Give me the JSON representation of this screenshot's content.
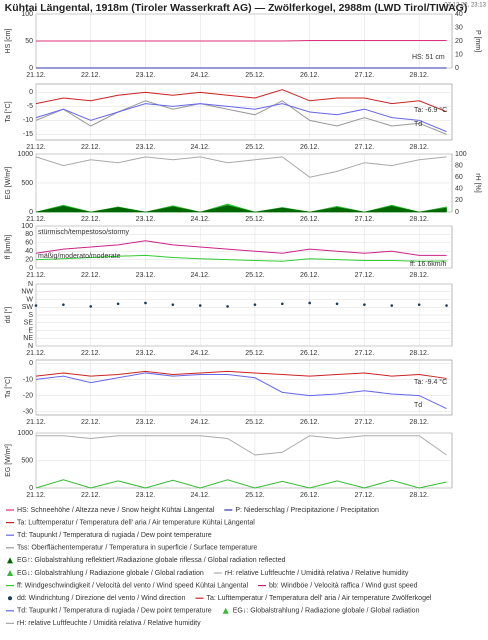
{
  "header": {
    "title": "Kühtai Längental, 1918m (Tiroler Wasserkraft AG) — Zwölferkogel, 2988m (LWD Tirol/TIWAG)",
    "timestamp": "07.12.22, 23:13"
  },
  "time_axis": {
    "x": [
      0,
      0.5,
      1,
      1.5,
      2,
      2.5,
      3,
      3.5,
      4,
      4.5,
      5,
      5.5,
      6,
      6.5,
      7,
      7.5
    ],
    "xlim": [
      0,
      7.6
    ],
    "xticks": [
      {
        "value": 0,
        "label": "21.12."
      },
      {
        "value": 1,
        "label": "22.12."
      },
      {
        "value": 2,
        "label": "23.12."
      },
      {
        "value": 3,
        "label": "24.12."
      },
      {
        "value": 4,
        "label": "25.12."
      },
      {
        "value": 5,
        "label": "26.12."
      },
      {
        "value": 6,
        "label": "27.12."
      },
      {
        "value": 7,
        "label": "28.12."
      }
    ]
  },
  "chart_data": [
    {
      "type": "line",
      "ylabel": "HS [cm]",
      "y2label": "P [mm]",
      "ylim": [
        0,
        100
      ],
      "yticks": [
        0,
        50,
        100
      ],
      "y2lim": [
        0,
        40
      ],
      "y2ticks": [
        0,
        10,
        20,
        30,
        40
      ],
      "grid": true,
      "series": [
        {
          "name": "HS",
          "type": "line",
          "color": "#e0307a",
          "values": [
            50,
            50,
            50,
            50,
            50,
            50,
            50,
            50,
            50,
            50,
            51,
            51,
            51,
            51,
            51,
            51
          ]
        },
        {
          "name": "P",
          "type": "line",
          "axis": "y2",
          "color": "#3333aa",
          "values": [
            0,
            0,
            0,
            0,
            0,
            0,
            0,
            0,
            0,
            0,
            0,
            0,
            0,
            0,
            0,
            0
          ]
        }
      ],
      "annotations": [
        {
          "text": "HS: 51 cm",
          "color": "#e0307a"
        }
      ]
    },
    {
      "type": "line",
      "ylabel": "Ta [°C]",
      "ylim": [
        -17,
        3
      ],
      "yticks": [
        -15,
        -10,
        -5,
        0
      ],
      "grid": true,
      "series": [
        {
          "name": "Tss",
          "type": "line",
          "color": "#999999",
          "values": [
            -10,
            -6,
            -12,
            -7,
            -3,
            -6,
            -4,
            -6,
            -8,
            -3,
            -10,
            -12,
            -9,
            -12,
            -11,
            -15
          ]
        },
        {
          "name": "Td",
          "type": "line",
          "color": "#6666ee",
          "values": [
            -9,
            -6,
            -10,
            -7,
            -4,
            -5,
            -4,
            -5,
            -6,
            -4,
            -7,
            -8,
            -6,
            -9,
            -10,
            -14
          ]
        },
        {
          "name": "Ta",
          "type": "line",
          "color": "#cc2222",
          "values": [
            -4,
            -2,
            -3,
            -1,
            0,
            -1,
            0,
            -1,
            -2,
            1,
            -3,
            -2,
            -2,
            -4,
            -3,
            -6.9
          ]
        }
      ],
      "annotations": [
        {
          "text": "Ta: -6.9 °C",
          "color": "#cc2222"
        },
        {
          "text": "Td",
          "color": "#6666ee"
        }
      ]
    },
    {
      "type": "line",
      "ylabel": "EG [W/m²]",
      "y2label": "rH [%]",
      "ylim": [
        0,
        1000
      ],
      "yticks": [
        0,
        500,
        1000
      ],
      "y2lim": [
        0,
        100
      ],
      "y2ticks": [
        0,
        20,
        40,
        60,
        80,
        100
      ],
      "grid": true,
      "series": [
        {
          "name": "rH",
          "type": "line",
          "axis": "y2",
          "color": "#aaaaaa",
          "values": [
            95,
            80,
            90,
            85,
            95,
            90,
            95,
            85,
            90,
            95,
            60,
            70,
            85,
            80,
            90,
            95
          ]
        },
        {
          "name": "EG↓",
          "type": "area",
          "color": "#33bb33",
          "values": [
            0,
            120,
            0,
            90,
            0,
            110,
            0,
            140,
            0,
            80,
            0,
            100,
            0,
            120,
            0,
            90
          ]
        },
        {
          "name": "EG↑",
          "type": "area",
          "color": "#006600",
          "values": [
            0,
            100,
            0,
            80,
            0,
            90,
            0,
            110,
            0,
            70,
            0,
            80,
            0,
            100,
            0,
            70
          ]
        }
      ],
      "annotations": []
    },
    {
      "type": "line",
      "ylabel": "ff [km/h]",
      "ylim": [
        0,
        100
      ],
      "yticks": [
        0,
        20,
        40,
        60,
        80,
        100
      ],
      "grid": true,
      "series": [
        {
          "name": "bb",
          "type": "line",
          "color": "#cc2288",
          "values": [
            35,
            45,
            50,
            55,
            65,
            55,
            50,
            45,
            40,
            35,
            45,
            40,
            35,
            40,
            30,
            30
          ]
        },
        {
          "name": "ff",
          "type": "line",
          "color": "#33cc33",
          "values": [
            20,
            22,
            25,
            28,
            30,
            25,
            22,
            20,
            18,
            16,
            22,
            20,
            18,
            18,
            16,
            16.6
          ]
        }
      ],
      "annotations": [
        {
          "text": "stürmisch/tempestoso/stormy",
          "color": "#222222"
        },
        {
          "text": "mäßig/moderato/moderate",
          "color": "#222222"
        },
        {
          "text": "ff: 16.6km/h",
          "color": "#33aa33"
        }
      ]
    },
    {
      "type": "scatter",
      "ylabel": "dd [°]",
      "ylim": [
        0,
        360
      ],
      "grid": true,
      "yticks": [
        {
          "value": 360,
          "label": "N"
        },
        {
          "value": 315,
          "label": "NW"
        },
        {
          "value": 270,
          "label": "W"
        },
        {
          "value": 225,
          "label": "SW"
        },
        {
          "value": 180,
          "label": "S"
        },
        {
          "value": 135,
          "label": "SE"
        },
        {
          "value": 90,
          "label": "E"
        },
        {
          "value": 45,
          "label": "NE"
        },
        {
          "value": 0,
          "label": "N"
        }
      ],
      "series": [
        {
          "name": "dd",
          "type": "scatter",
          "color": "#1a3a5a",
          "values": [
            235,
            240,
            230,
            245,
            250,
            240,
            235,
            230,
            240,
            245,
            250,
            245,
            240,
            235,
            240,
            235
          ]
        }
      ],
      "annotations": []
    },
    {
      "type": "line",
      "ylabel": "Ta [°C]",
      "ylim": [
        -32,
        2
      ],
      "yticks": [
        -30,
        -20,
        -10,
        0
      ],
      "grid": true,
      "series": [
        {
          "name": "Td",
          "type": "line",
          "color": "#6666ee",
          "values": [
            -10,
            -8,
            -12,
            -9,
            -6,
            -8,
            -7,
            -7,
            -9,
            -18,
            -20,
            -19,
            -17,
            -19,
            -20,
            -28
          ]
        },
        {
          "name": "Ta",
          "type": "line",
          "color": "#cc2222",
          "values": [
            -8,
            -6,
            -8,
            -7,
            -5,
            -7,
            -6,
            -5,
            -6,
            -7,
            -8,
            -7,
            -6,
            -8,
            -7,
            -9.4
          ]
        }
      ],
      "annotations": [
        {
          "text": "Ta: -9.4 °C",
          "color": "#cc2222"
        },
        {
          "text": "Td",
          "color": "#6666ee"
        }
      ]
    },
    {
      "type": "line",
      "ylabel": "EG [W/m²]",
      "ylim": [
        0,
        1000
      ],
      "yticks": [
        0,
        500,
        1000
      ],
      "y2lim": [
        0,
        100
      ],
      "grid": true,
      "series": [
        {
          "name": "rH",
          "type": "line",
          "axis": "y2",
          "color": "#aaaaaa",
          "values": [
            95,
            95,
            90,
            95,
            95,
            95,
            95,
            90,
            60,
            65,
            95,
            90,
            95,
            95,
            95,
            60
          ]
        },
        {
          "name": "EG↓",
          "type": "line",
          "color": "#33bb33",
          "values": [
            0,
            150,
            0,
            130,
            0,
            140,
            0,
            150,
            0,
            120,
            0,
            130,
            0,
            140,
            0,
            110
          ]
        }
      ],
      "annotations": []
    }
  ],
  "legend": [
    [
      {
        "label": "HS: Schneehöhe / Altezza neve / Snow height  Kühtai Längental",
        "color": "#e0307a",
        "marker": "line"
      },
      {
        "label": "P: Niederschlag / Precipitazione / Precipitation",
        "color": "#3333aa",
        "marker": "line"
      }
    ],
    [
      {
        "label": "Ta: Lufttemperatur / Temperatura dell' aria / Air temperature  Kühtai Längental",
        "color": "#cc2222",
        "marker": "line"
      }
    ],
    [
      {
        "label": "Td: Taupunkt / Temperatura di rugiada / Dew point temperature",
        "color": "#6666ee",
        "marker": "line"
      }
    ],
    [
      {
        "label": "Tss: Oberflächentemperatur / Temperatura in superficie / Surface temperature",
        "color": "#999999",
        "marker": "line"
      }
    ],
    [
      {
        "label": "EG↑: Globalstrahlung reflektiert /Radiazione globale riflessa / Global radiation reflected",
        "color": "#006600",
        "marker": "triangle"
      }
    ],
    [
      {
        "label": "EG↓: Globalstrahlung / Radiazione globale / Global radiation",
        "color": "#33bb33",
        "marker": "triangle"
      },
      {
        "label": "rH: relative Luftfeuchte / Umidità relativa / Relative humidity",
        "color": "#aaaaaa",
        "marker": "line"
      }
    ],
    [
      {
        "label": "ff: Windgeschwindigkeit / Velocità del vento / Wind speed  Kühtai Längental",
        "color": "#33cc33",
        "marker": "line"
      },
      {
        "label": "bb: Windböe / Velocità raffica / Wind gust speed",
        "color": "#cc2288",
        "marker": "line"
      }
    ],
    [
      {
        "label": "dd: Windrichtung / Direzione del vento / Wind direction",
        "color": "#1a3a5a",
        "marker": "dot"
      },
      {
        "label": "Ta: Lufttemperatur / Temperatura dell' aria / Air temperature  Zwölferkogel",
        "color": "#cc2222",
        "marker": "line"
      }
    ],
    [
      {
        "label": "Td: Taupunkt / Temperatura di rugiada / Dew point temperature",
        "color": "#6666ee",
        "marker": "line"
      },
      {
        "label": "EG↓: Globalstrahlung / Radiazione globale / Global radiation",
        "color": "#33bb33",
        "marker": "triangle"
      }
    ],
    [
      {
        "label": "rH: relative Luftfeuchte / Umidità relativa / Relative humidity",
        "color": "#aaaaaa",
        "marker": "line"
      }
    ]
  ]
}
